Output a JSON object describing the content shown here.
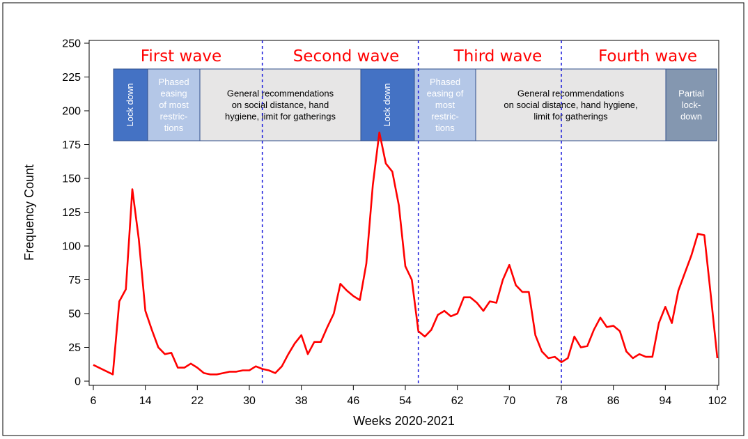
{
  "chart_data": {
    "type": "line",
    "xlabel": "Weeks 2020-2021",
    "ylabel": "Frequency Count",
    "xlim": [
      6,
      102
    ],
    "ylim": [
      0,
      250
    ],
    "x_ticks": [
      6,
      14,
      22,
      30,
      38,
      46,
      54,
      62,
      70,
      78,
      86,
      94,
      102
    ],
    "y_ticks": [
      0,
      25,
      50,
      75,
      100,
      125,
      150,
      175,
      200,
      225,
      250
    ],
    "series": [
      {
        "name": "Frequency Count",
        "color": "#ff0000",
        "x": [
          6,
          9,
          10,
          11,
          12,
          13,
          14,
          15,
          16,
          17,
          18,
          19,
          20,
          21,
          22,
          23,
          24,
          25,
          26,
          27,
          28,
          29,
          30,
          31,
          32,
          33,
          34,
          35,
          36,
          37,
          38,
          39,
          40,
          41,
          42,
          43,
          44,
          45,
          46,
          47,
          48,
          49,
          50,
          51,
          52,
          53,
          54,
          55,
          56,
          57,
          58,
          59,
          60,
          61,
          62,
          63,
          64,
          65,
          66,
          67,
          68,
          69,
          70,
          71,
          72,
          73,
          74,
          75,
          76,
          77,
          78,
          79,
          80,
          81,
          82,
          83,
          84,
          85,
          86,
          87,
          88,
          89,
          90,
          91,
          92,
          93,
          94,
          95,
          96,
          97,
          98,
          99,
          100,
          101,
          102
        ],
        "y": [
          12,
          5,
          59,
          68,
          142,
          105,
          52,
          38,
          25,
          20,
          21,
          10,
          10,
          13,
          10,
          6,
          5,
          5,
          6,
          7,
          7,
          8,
          8,
          11,
          9,
          8,
          6,
          11,
          20,
          28,
          34,
          20,
          29,
          29,
          40,
          50,
          72,
          67,
          63,
          60,
          87,
          145,
          184,
          161,
          155,
          130,
          85,
          75,
          37,
          33,
          38,
          49,
          52,
          48,
          50,
          62,
          62,
          58,
          52,
          59,
          58,
          75,
          86,
          71,
          66,
          66,
          34,
          22,
          17,
          18,
          14,
          17,
          33,
          25,
          26,
          38,
          47,
          40,
          41,
          37,
          22,
          17,
          20,
          18,
          18,
          43,
          55,
          43,
          67,
          80,
          93,
          109,
          108,
          63,
          17
        ]
      }
    ],
    "wave_labels": [
      "First wave",
      "Second wave",
      "Third wave",
      "Fourth wave"
    ],
    "wave_boundaries": [
      32,
      56,
      78
    ],
    "phases": [
      {
        "text": "Lock down",
        "orientation": "vertical",
        "fill": "#4472c4",
        "text_color": "#ffffff"
      },
      {
        "text": "Phased easing of most restric- tions",
        "lines": [
          "Phased",
          "easing",
          "of most",
          "restric-",
          "tions"
        ],
        "orientation": "horizontal",
        "fill": "#b4c7e7",
        "text_color": "#ffffff"
      },
      {
        "text": "General recommendations on social distance, hand hygiene, limit for gatherings",
        "lines": [
          "General recommendations",
          "on social distance, hand",
          "hygiene, limit for gatherings"
        ],
        "orientation": "horizontal",
        "fill": "#e7e6e6",
        "text_color": "#000000"
      },
      {
        "text": "Lock down",
        "orientation": "vertical",
        "fill": "#4472c4",
        "text_color": "#ffffff"
      },
      {
        "text": "Phased easing of most restric- tions",
        "lines": [
          "Phased",
          "easing of",
          "most",
          "restric-",
          "tions"
        ],
        "orientation": "horizontal",
        "fill": "#b4c7e7",
        "text_color": "#ffffff"
      },
      {
        "text": "General recommendations on social distance, hand hygiene, limit for gatherings",
        "lines": [
          "General recommendations",
          "on social distance, hand hygiene,",
          "limit for gatherings"
        ],
        "orientation": "horizontal",
        "fill": "#e7e6e6",
        "text_color": "#000000"
      },
      {
        "text": "Partial lock- down",
        "lines": [
          "Partial",
          "lock-",
          "down"
        ],
        "orientation": "horizontal",
        "fill": "#8497b0",
        "text_color": "#ffffff"
      }
    ]
  }
}
